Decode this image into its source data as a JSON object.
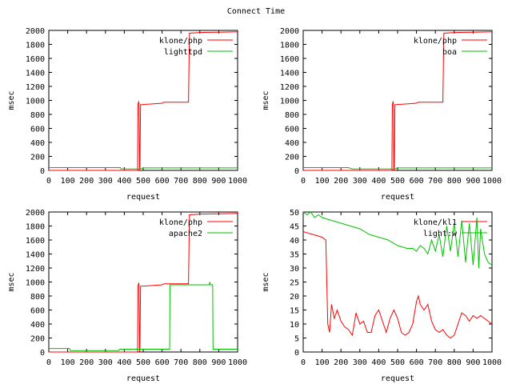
{
  "title": "Connect Time",
  "colors": {
    "series_a": "#ff0000",
    "series_b": "#00c000",
    "frame": "#000000",
    "background": "#ffffff"
  },
  "chart_data": [
    {
      "type": "line",
      "xlabel": "request",
      "ylabel": "msec",
      "xlim": [
        0,
        1000
      ],
      "ylim": [
        0,
        2000
      ],
      "xticks": [
        0,
        100,
        200,
        300,
        400,
        500,
        600,
        700,
        800,
        900,
        1000
      ],
      "yticks": [
        0,
        200,
        400,
        600,
        800,
        1000,
        1200,
        1400,
        1600,
        1800,
        2000
      ],
      "legend_position": "top-right",
      "grid": false,
      "series": [
        {
          "name": "klone/php",
          "points": [
            [
              0,
              0
            ],
            [
              470,
              0
            ],
            [
              472,
              940
            ],
            [
              476,
              980
            ],
            [
              478,
              960
            ],
            [
              480,
              0
            ],
            [
              482,
              0
            ],
            [
              486,
              940
            ],
            [
              550,
              950
            ],
            [
              600,
              960
            ],
            [
              610,
              975
            ],
            [
              730,
              975
            ],
            [
              740,
              975
            ],
            [
              745,
              1960
            ],
            [
              800,
              1970
            ],
            [
              900,
              1975
            ],
            [
              1000,
              1980
            ]
          ]
        },
        {
          "name": "lighttpd",
          "points": [
            [
              0,
              40
            ],
            [
              380,
              40
            ],
            [
              382,
              20
            ],
            [
              480,
              20
            ],
            [
              500,
              35
            ],
            [
              700,
              35
            ],
            [
              1000,
              35
            ]
          ]
        }
      ]
    },
    {
      "type": "line",
      "xlabel": "request",
      "ylabel": "msec",
      "xlim": [
        0,
        1000
      ],
      "ylim": [
        0,
        2000
      ],
      "xticks": [
        0,
        100,
        200,
        300,
        400,
        500,
        600,
        700,
        800,
        900,
        1000
      ],
      "yticks": [
        0,
        200,
        400,
        600,
        800,
        1000,
        1200,
        1400,
        1600,
        1800,
        2000
      ],
      "legend_position": "top-right",
      "grid": false,
      "series": [
        {
          "name": "klone/php",
          "points": [
            [
              0,
              0
            ],
            [
              470,
              0
            ],
            [
              472,
              940
            ],
            [
              476,
              980
            ],
            [
              478,
              960
            ],
            [
              480,
              0
            ],
            [
              482,
              0
            ],
            [
              486,
              940
            ],
            [
              550,
              950
            ],
            [
              600,
              960
            ],
            [
              610,
              975
            ],
            [
              730,
              975
            ],
            [
              740,
              975
            ],
            [
              745,
              1960
            ],
            [
              800,
              1970
            ],
            [
              900,
              1975
            ],
            [
              1000,
              1980
            ]
          ]
        },
        {
          "name": "boa",
          "points": [
            [
              0,
              40
            ],
            [
              240,
              40
            ],
            [
              260,
              20
            ],
            [
              480,
              20
            ],
            [
              500,
              35
            ],
            [
              1000,
              35
            ]
          ]
        }
      ]
    },
    {
      "type": "line",
      "xlabel": "request",
      "ylabel": "msec",
      "xlim": [
        0,
        1000
      ],
      "ylim": [
        0,
        2000
      ],
      "xticks": [
        0,
        100,
        200,
        300,
        400,
        500,
        600,
        700,
        800,
        900,
        1000
      ],
      "yticks": [
        0,
        200,
        400,
        600,
        800,
        1000,
        1200,
        1400,
        1600,
        1800,
        2000
      ],
      "legend_position": "top-right",
      "grid": false,
      "series": [
        {
          "name": "klone/php",
          "points": [
            [
              0,
              0
            ],
            [
              470,
              0
            ],
            [
              472,
              940
            ],
            [
              476,
              980
            ],
            [
              478,
              960
            ],
            [
              480,
              0
            ],
            [
              482,
              0
            ],
            [
              486,
              940
            ],
            [
              550,
              950
            ],
            [
              600,
              960
            ],
            [
              610,
              975
            ],
            [
              730,
              975
            ],
            [
              740,
              975
            ],
            [
              745,
              1960
            ],
            [
              800,
              1970
            ],
            [
              900,
              1975
            ],
            [
              1000,
              1980
            ]
          ]
        },
        {
          "name": "apache2",
          "points": [
            [
              0,
              50
            ],
            [
              110,
              50
            ],
            [
              115,
              20
            ],
            [
              370,
              20
            ],
            [
              375,
              40
            ],
            [
              640,
              40
            ],
            [
              642,
              960
            ],
            [
              850,
              960
            ],
            [
              852,
              1000
            ],
            [
              856,
              960
            ],
            [
              868,
              960
            ],
            [
              870,
              40
            ],
            [
              1000,
              40
            ]
          ]
        }
      ]
    },
    {
      "type": "line",
      "xlabel": "request",
      "ylabel": "msec",
      "xlim": [
        0,
        1000
      ],
      "ylim": [
        0,
        50
      ],
      "xticks": [
        0,
        100,
        200,
        300,
        400,
        500,
        600,
        700,
        800,
        900,
        1000
      ],
      "yticks": [
        0,
        5,
        10,
        15,
        20,
        25,
        30,
        35,
        40,
        45,
        50
      ],
      "legend_position": "top-right",
      "grid": false,
      "series": [
        {
          "name": "klone/kl1",
          "points": [
            [
              0,
              43
            ],
            [
              50,
              42
            ],
            [
              100,
              41
            ],
            [
              120,
              40
            ],
            [
              130,
              10
            ],
            [
              140,
              7
            ],
            [
              150,
              17
            ],
            [
              165,
              12
            ],
            [
              180,
              15
            ],
            [
              200,
              11
            ],
            [
              220,
              9
            ],
            [
              240,
              8
            ],
            [
              260,
              6
            ],
            [
              280,
              14
            ],
            [
              300,
              10
            ],
            [
              320,
              11
            ],
            [
              340,
              7
            ],
            [
              360,
              7
            ],
            [
              380,
              13
            ],
            [
              400,
              15
            ],
            [
              420,
              11
            ],
            [
              440,
              7
            ],
            [
              460,
              12
            ],
            [
              480,
              15
            ],
            [
              500,
              12
            ],
            [
              520,
              7
            ],
            [
              540,
              6
            ],
            [
              560,
              7
            ],
            [
              580,
              10
            ],
            [
              600,
              18
            ],
            [
              610,
              20
            ],
            [
              620,
              17
            ],
            [
              640,
              15
            ],
            [
              660,
              17
            ],
            [
              680,
              11
            ],
            [
              700,
              8
            ],
            [
              720,
              7
            ],
            [
              740,
              8
            ],
            [
              760,
              6
            ],
            [
              780,
              5
            ],
            [
              800,
              6
            ],
            [
              820,
              10
            ],
            [
              840,
              14
            ],
            [
              860,
              13
            ],
            [
              880,
              11
            ],
            [
              900,
              13
            ],
            [
              920,
              12
            ],
            [
              940,
              13
            ],
            [
              960,
              12
            ],
            [
              980,
              11
            ],
            [
              1000,
              10
            ]
          ]
        },
        {
          "name": "light:w",
          "points": [
            [
              0,
              50
            ],
            [
              20,
              49
            ],
            [
              40,
              50
            ],
            [
              60,
              48
            ],
            [
              80,
              49
            ],
            [
              100,
              48
            ],
            [
              150,
              47
            ],
            [
              200,
              46
            ],
            [
              250,
              45
            ],
            [
              300,
              44
            ],
            [
              350,
              42
            ],
            [
              400,
              41
            ],
            [
              450,
              40
            ],
            [
              500,
              38
            ],
            [
              550,
              37
            ],
            [
              580,
              37
            ],
            [
              600,
              36
            ],
            [
              620,
              38
            ],
            [
              640,
              37
            ],
            [
              660,
              35
            ],
            [
              680,
              40
            ],
            [
              700,
              36
            ],
            [
              720,
              42
            ],
            [
              740,
              34
            ],
            [
              760,
              45
            ],
            [
              780,
              36
            ],
            [
              800,
              46
            ],
            [
              820,
              34
            ],
            [
              840,
              47
            ],
            [
              860,
              32
            ],
            [
              880,
              46
            ],
            [
              900,
              31
            ],
            [
              920,
              48
            ],
            [
              930,
              30
            ],
            [
              940,
              44
            ],
            [
              960,
              35
            ],
            [
              980,
              32
            ],
            [
              1000,
              31
            ]
          ]
        }
      ]
    }
  ]
}
